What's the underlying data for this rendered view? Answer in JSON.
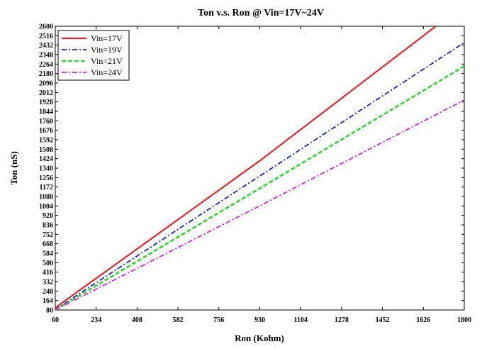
{
  "chart_data": {
    "type": "line",
    "title": "Ton v.s. Ron @ Vin=17V~24V",
    "xlabel": "Ron (Kohm)",
    "ylabel": "Ton (nS)",
    "xlim": [
      60,
      1800
    ],
    "ylim": [
      80,
      2600
    ],
    "xticks": [
      60,
      234,
      408,
      582,
      756,
      930,
      1104,
      1278,
      1452,
      1626,
      1800
    ],
    "yticks": [
      80,
      164,
      248,
      332,
      416,
      500,
      584,
      668,
      752,
      836,
      920,
      1004,
      1088,
      1172,
      1256,
      1340,
      1424,
      1508,
      1592,
      1676,
      1760,
      1844,
      1928,
      2012,
      2096,
      2180,
      2264,
      2348,
      2432,
      2516,
      2600
    ],
    "grid": false,
    "legend_position": "top-left",
    "series": [
      {
        "name": "Vin=17V",
        "color": "#e8252a",
        "dash": "solid",
        "x": [
          60,
          930,
          1679
        ],
        "y": [
          100,
          1405,
          2600
        ]
      },
      {
        "name": "Vin=19V",
        "color": "#1a20cc",
        "dash": "dashdot",
        "x": [
          60,
          930,
          1800
        ],
        "y": [
          85,
          1270,
          2455
        ]
      },
      {
        "name": "Vin=21V",
        "color": "#2ed82e",
        "dash": "dashed",
        "x": [
          60,
          930,
          1800
        ],
        "y": [
          80,
          1160,
          2245
        ]
      },
      {
        "name": "Vin=24V",
        "color": "#dd22dd",
        "dash": "dashdot",
        "x": [
          60,
          930,
          1800
        ],
        "y": [
          80,
          1005,
          1945
        ]
      }
    ]
  }
}
